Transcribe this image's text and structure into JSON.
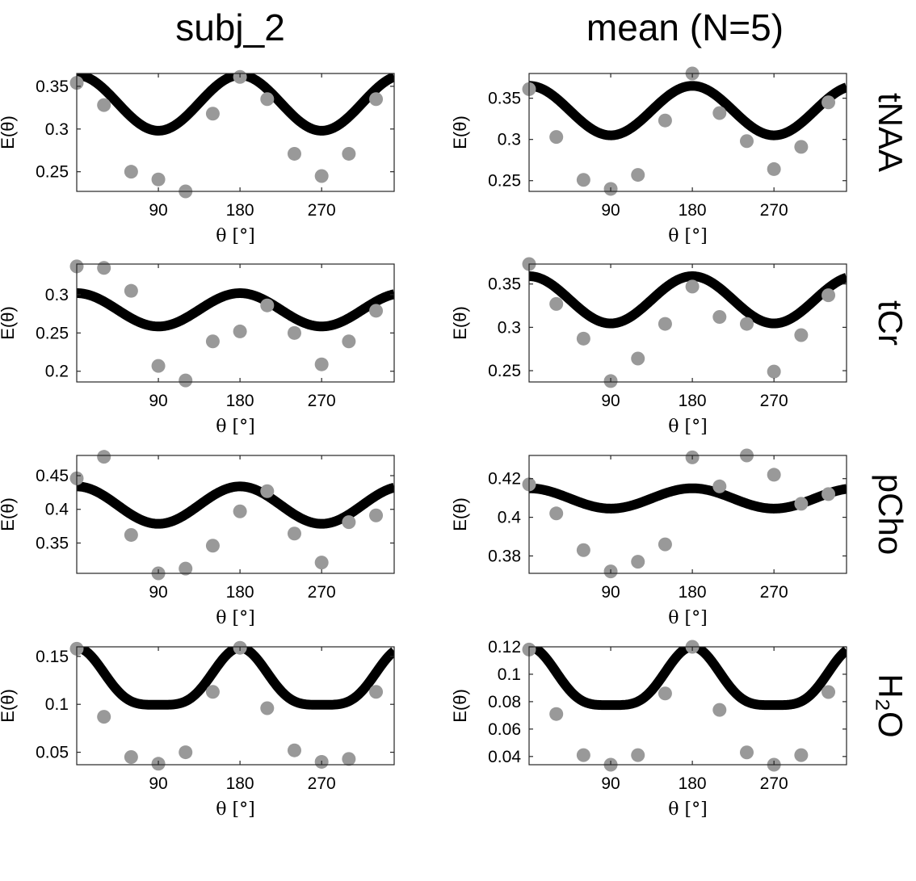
{
  "columns": [
    "subj_2",
    "mean (N=5)"
  ],
  "rows": [
    "tNAA",
    "tCr",
    "pCho",
    "H₂O"
  ],
  "axis": {
    "xlabel": "θ [°]",
    "ylabel": "E(θ)",
    "xticks": [
      90,
      180,
      270
    ],
    "xlim": [
      0,
      350
    ]
  },
  "colors": {
    "fit": "#000000",
    "points": "#999999"
  },
  "chart_data": [
    {
      "type": "scatter",
      "column": "subj_2",
      "row": "tNAA",
      "xlabel": "θ [°]",
      "ylabel": "E(θ)",
      "ylim": [
        0.227,
        0.365
      ],
      "yticks": [
        0.25,
        0.3,
        0.35
      ],
      "yticklabels": [
        "0.25",
        "0.3",
        "0.35"
      ],
      "fit": {
        "A": 0.298,
        "B": 0.065,
        "n": 2,
        "p": 2
      },
      "x": [
        0,
        30,
        60,
        90,
        120,
        150,
        180,
        210,
        240,
        270,
        300,
        330
      ],
      "y": [
        0.354,
        0.328,
        0.25,
        0.241,
        0.227,
        0.318,
        0.361,
        0.335,
        0.271,
        0.245,
        0.271,
        0.335
      ]
    },
    {
      "type": "scatter",
      "column": "mean (N=5)",
      "row": "tNAA",
      "xlabel": "θ [°]",
      "ylabel": "E(θ)",
      "ylim": [
        0.237,
        0.38
      ],
      "yticks": [
        0.25,
        0.3,
        0.35
      ],
      "yticklabels": [
        "0.25",
        "0.3",
        "0.35"
      ],
      "fit": {
        "A": 0.305,
        "B": 0.06,
        "n": 2,
        "p": 2
      },
      "x": [
        0,
        30,
        60,
        90,
        120,
        150,
        180,
        210,
        240,
        270,
        300,
        330
      ],
      "y": [
        0.361,
        0.303,
        0.251,
        0.24,
        0.257,
        0.323,
        0.38,
        0.332,
        0.298,
        0.264,
        0.291,
        0.345
      ]
    },
    {
      "type": "scatter",
      "column": "subj_2",
      "row": "tCr",
      "xlabel": "θ [°]",
      "ylabel": "E(θ)",
      "ylim": [
        0.186,
        0.34
      ],
      "yticks": [
        0.2,
        0.25,
        0.3
      ],
      "yticklabels": [
        "0.2",
        "0.25",
        "0.3"
      ],
      "fit": {
        "A": 0.2585,
        "B": 0.0435,
        "n": 2,
        "p": 2
      },
      "x": [
        0,
        30,
        60,
        90,
        120,
        150,
        180,
        210,
        240,
        270,
        300,
        330
      ],
      "y": [
        0.337,
        0.335,
        0.305,
        0.207,
        0.188,
        0.239,
        0.252,
        0.286,
        0.25,
        0.209,
        0.239,
        0.279
      ]
    },
    {
      "type": "scatter",
      "column": "mean (N=5)",
      "row": "tCr",
      "xlabel": "θ [°]",
      "ylabel": "E(θ)",
      "ylim": [
        0.237,
        0.373
      ],
      "yticks": [
        0.25,
        0.3,
        0.35
      ],
      "yticklabels": [
        "0.25",
        "0.3",
        "0.35"
      ],
      "fit": {
        "A": 0.3045,
        "B": 0.0545,
        "n": 2,
        "p": 2
      },
      "x": [
        0,
        30,
        60,
        90,
        120,
        150,
        180,
        210,
        240,
        270,
        300,
        330
      ],
      "y": [
        0.373,
        0.327,
        0.287,
        0.238,
        0.264,
        0.304,
        0.347,
        0.312,
        0.304,
        0.249,
        0.291,
        0.337
      ]
    },
    {
      "type": "scatter",
      "column": "subj_2",
      "row": "pCho",
      "xlabel": "θ [°]",
      "ylabel": "E(θ)",
      "ylim": [
        0.305,
        0.48
      ],
      "yticks": [
        0.35,
        0.4,
        0.45
      ],
      "yticklabels": [
        "0.35",
        "0.4",
        "0.45"
      ],
      "fit": {
        "A": 0.3785,
        "B": 0.0555,
        "n": 2,
        "p": 2
      },
      "x": [
        0,
        30,
        60,
        90,
        120,
        150,
        180,
        210,
        240,
        270,
        300,
        330
      ],
      "y": [
        0.446,
        0.478,
        0.362,
        0.305,
        0.312,
        0.346,
        0.397,
        0.427,
        0.364,
        0.321,
        0.381,
        0.391
      ]
    },
    {
      "type": "scatter",
      "column": "mean (N=5)",
      "row": "pCho",
      "xlabel": "θ [°]",
      "ylabel": "E(θ)",
      "ylim": [
        0.371,
        0.432
      ],
      "yticks": [
        0.38,
        0.4,
        0.42
      ],
      "yticklabels": [
        "0.38",
        "0.4",
        "0.42"
      ],
      "fit": {
        "A": 0.4045,
        "B": 0.0105,
        "n": 2,
        "p": 2
      },
      "x": [
        0,
        30,
        60,
        90,
        120,
        150,
        180,
        210,
        240,
        270,
        300,
        330
      ],
      "y": [
        0.417,
        0.402,
        0.383,
        0.372,
        0.377,
        0.386,
        0.431,
        0.416,
        0.432,
        0.422,
        0.407,
        0.412
      ]
    },
    {
      "type": "scatter",
      "column": "subj_2",
      "row": "H₂O",
      "xlabel": "θ [°]",
      "ylabel": "E(θ)",
      "ylim": [
        0.037,
        0.16
      ],
      "yticks": [
        0.05,
        0.1,
        0.15
      ],
      "yticklabels": [
        "0.05",
        "0.1",
        "0.15"
      ],
      "fit": {
        "A": 0.0995,
        "B": 0.0595,
        "n": 4,
        "p": 4
      },
      "x": [
        0,
        30,
        60,
        90,
        120,
        150,
        180,
        210,
        240,
        270,
        300,
        330
      ],
      "y": [
        0.158,
        0.087,
        0.045,
        0.038,
        0.05,
        0.113,
        0.159,
        0.096,
        0.052,
        0.04,
        0.043,
        0.113
      ]
    },
    {
      "type": "scatter",
      "column": "mean (N=5)",
      "row": "H₂O",
      "xlabel": "θ [°]",
      "ylabel": "E(θ)",
      "ylim": [
        0.034,
        0.12
      ],
      "yticks": [
        0.04,
        0.06,
        0.08,
        0.1,
        0.12
      ],
      "yticklabels": [
        "0.04",
        "0.06",
        "0.08",
        "0.1",
        "0.12"
      ],
      "fit": {
        "A": 0.0775,
        "B": 0.0425,
        "n": 4,
        "p": 4
      },
      "x": [
        0,
        30,
        60,
        90,
        120,
        150,
        180,
        210,
        240,
        270,
        300,
        330
      ],
      "y": [
        0.118,
        0.071,
        0.041,
        0.034,
        0.041,
        0.086,
        0.12,
        0.074,
        0.043,
        0.034,
        0.041,
        0.087
      ]
    }
  ]
}
